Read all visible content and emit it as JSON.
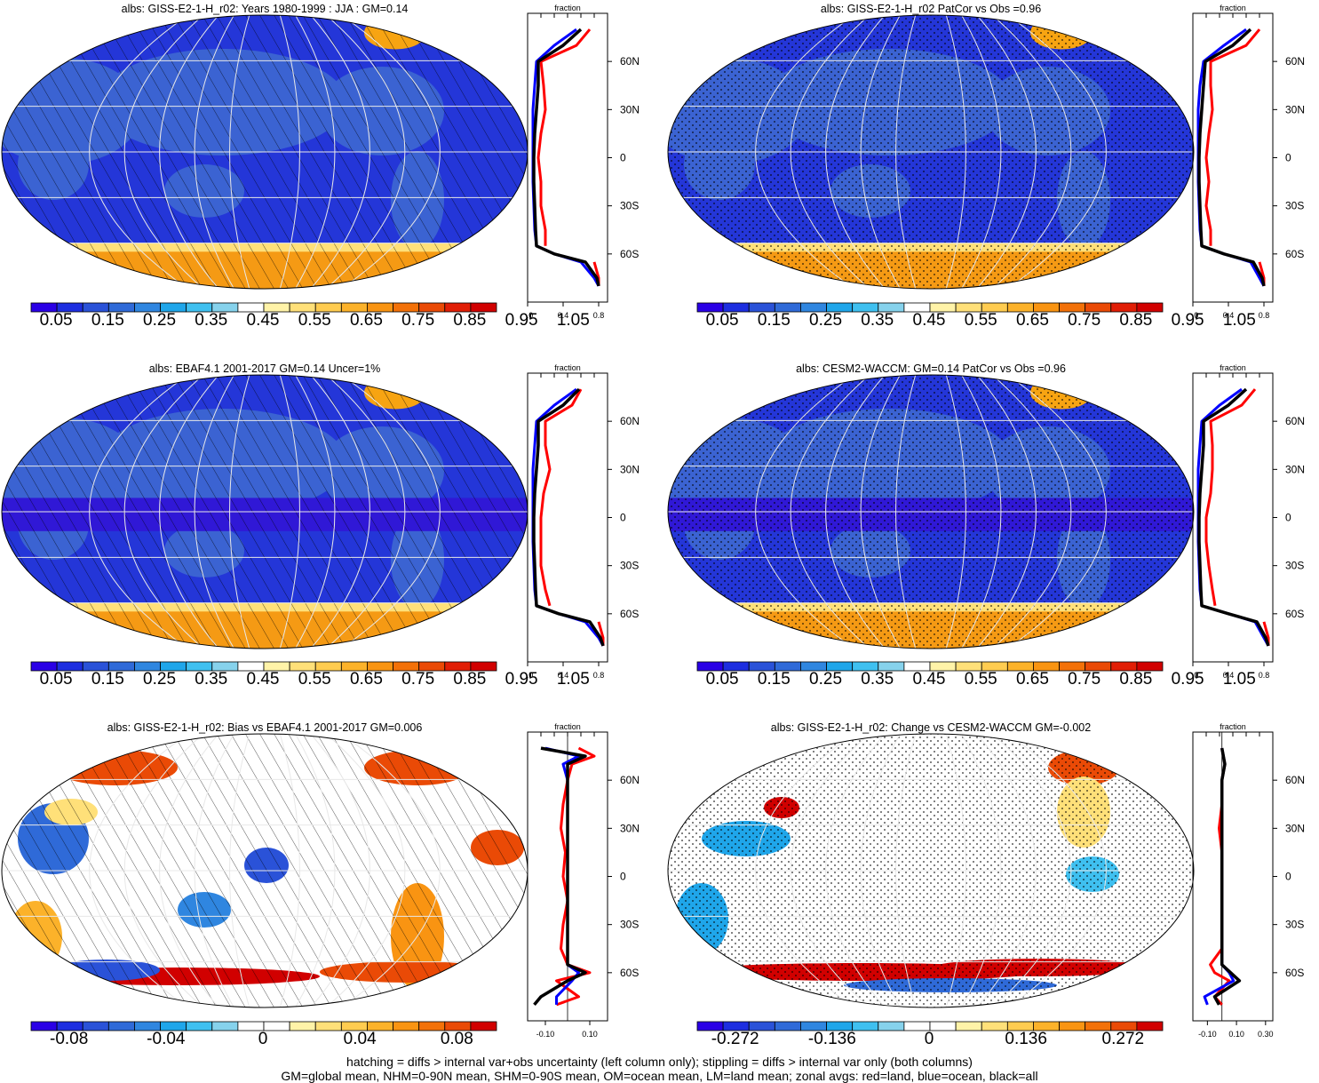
{
  "colors": {
    "scale_abs": [
      "#2a00e6",
      "#1d2ee0",
      "#2a52d8",
      "#2f6ad8",
      "#2f86e0",
      "#1fa6ea",
      "#3fc0f0",
      "#86d2ec",
      "#ffffff",
      "#fff3a8",
      "#ffe079",
      "#ffcc50",
      "#fcb22a",
      "#f99412",
      "#f37108",
      "#ea4a06",
      "#e11e06",
      "#d10000"
    ],
    "scale_div": [
      "#2a00e6",
      "#1d2ee0",
      "#2a52d8",
      "#2f6ad8",
      "#2f86e0",
      "#1fa6ea",
      "#3fc0f0",
      "#86d2ec",
      "#ffffff",
      "#ffffff",
      "#fff3a8",
      "#ffe079",
      "#ffcc50",
      "#fcb22a",
      "#f99412",
      "#f37108",
      "#ea4a06",
      "#d10000"
    ],
    "land": "#ff0000",
    "ocean": "#0000ff",
    "all": "#000000"
  },
  "panels": [
    {
      "id": "p1",
      "title": "albs: GISS-E2-1-H_r02: Years 1980-1999 : JJA : GM=0.14",
      "kind": "abs",
      "overlay": "hatch",
      "cb_labels": [
        "0.05",
        "0.15",
        "0.25",
        "0.35",
        "0.45",
        "0.55",
        "0.65",
        "0.75",
        "0.85",
        "0.95",
        "1.05"
      ],
      "prof_ticks": [
        "0.0",
        "0.4",
        "0.8"
      ]
    },
    {
      "id": "p2",
      "title": "albs: GISS-E2-1-H_r02 PatCor vs Obs =0.96",
      "kind": "abs",
      "overlay": "stipple",
      "cb_labels": [
        "0.05",
        "0.15",
        "0.25",
        "0.35",
        "0.45",
        "0.55",
        "0.65",
        "0.75",
        "0.85",
        "0.95",
        "1.05"
      ],
      "prof_ticks": [
        "0.0",
        "0.4",
        "0.8"
      ]
    },
    {
      "id": "p3",
      "title": "albs: EBAF4.1 2001-2017 GM=0.14 Uncer=1%",
      "kind": "abs",
      "overlay": "hatch",
      "cb_labels": [
        "0.05",
        "0.15",
        "0.25",
        "0.35",
        "0.45",
        "0.55",
        "0.65",
        "0.75",
        "0.85",
        "0.95",
        "1.05"
      ],
      "prof_ticks": [
        "0.0",
        "0.4",
        "0.8"
      ]
    },
    {
      "id": "p4",
      "title": "albs: CESM2-WACCM: GM=0.14 PatCor vs Obs =0.96",
      "kind": "abs",
      "overlay": "stipple",
      "cb_labels": [
        "0.05",
        "0.15",
        "0.25",
        "0.35",
        "0.45",
        "0.55",
        "0.65",
        "0.75",
        "0.85",
        "0.95",
        "1.05"
      ],
      "prof_ticks": [
        "0.0",
        "0.4",
        "0.8"
      ]
    },
    {
      "id": "p5",
      "title": "albs: GISS-E2-1-H_r02: Bias vs EBAF4.1 2001-2017 GM=0.006",
      "kind": "diff",
      "overlay": "hatch",
      "cb_labels": [
        "-0.08",
        "-0.04",
        "0",
        "0.04",
        "0.08"
      ],
      "prof_ticks": [
        "-0.10",
        "0.10"
      ]
    },
    {
      "id": "p6",
      "title": "albs: GISS-E2-1-H_r02: Change vs CESM2-WACCM GM=-0.002",
      "kind": "diff",
      "overlay": "stipple",
      "cb_labels": [
        "-0.272",
        "-0.136",
        "0",
        "0.136",
        "0.272"
      ],
      "prof_ticks": [
        "-0.10",
        "0.10",
        "0.30"
      ]
    }
  ],
  "profile": {
    "top_label": "fraction",
    "lat_labels": [
      "60N",
      "30N",
      "0",
      "30S",
      "60S"
    ]
  },
  "footer": {
    "line1": "hatching = diffs > internal var+obs uncertainty (left column only); stippling = diffs > internal var only (both columns)",
    "line2": "GM=global mean, NHM=0-90N mean, SHM=0-90S mean, OM=ocean mean, LM=land mean; zonal avgs: red=land, blue=ocean, black=all"
  },
  "chart_data": [
    {
      "type": "heatmap",
      "title": "albs: GISS-E2-1-H_r02: Years 1980-1999 : JJA : GM=0.14",
      "colorbar_ticks": [
        0.05,
        0.15,
        0.25,
        0.35,
        0.45,
        0.55,
        0.65,
        0.75,
        0.85,
        0.95,
        1.05
      ],
      "zonal_profile": {
        "xlabel": "fraction",
        "xlim": [
          0,
          0.9
        ],
        "lat": [
          80,
          70,
          60,
          45,
          30,
          15,
          0,
          -15,
          -30,
          -45,
          -55,
          -60,
          -65,
          -75,
          -80
        ],
        "series": [
          {
            "name": "red=land",
            "values": [
              0.7,
              0.55,
              0.15,
              0.18,
              0.2,
              0.15,
              0.12,
              0.15,
              0.15,
              0.2,
              0.2,
              null,
              0.75,
              0.8,
              0.8
            ]
          },
          {
            "name": "blue=ocean",
            "values": [
              0.55,
              0.3,
              0.1,
              0.08,
              0.06,
              0.06,
              0.06,
              0.06,
              0.07,
              0.08,
              0.1,
              0.3,
              0.6,
              0.75,
              0.8
            ]
          },
          {
            "name": "black=all",
            "values": [
              0.6,
              0.4,
              0.12,
              0.12,
              0.1,
              0.08,
              0.07,
              0.07,
              0.08,
              0.09,
              0.1,
              0.3,
              0.65,
              0.78,
              0.8
            ]
          }
        ]
      }
    },
    {
      "type": "heatmap",
      "title": "albs: GISS-E2-1-H_r02 PatCor vs Obs =0.96",
      "colorbar_ticks": [
        0.05,
        0.15,
        0.25,
        0.35,
        0.45,
        0.55,
        0.65,
        0.75,
        0.85,
        0.95,
        1.05
      ],
      "zonal_profile": {
        "xlabel": "fraction",
        "xlim": [
          0,
          0.9
        ],
        "lat": [
          80,
          70,
          60,
          45,
          30,
          15,
          0,
          -15,
          -30,
          -45,
          -55,
          -60,
          -65,
          -75,
          -80
        ],
        "series": [
          {
            "name": "red=land",
            "values": [
              0.75,
              0.6,
              0.2,
              0.2,
              0.22,
              0.18,
              0.15,
              0.18,
              0.15,
              0.2,
              0.2,
              null,
              0.75,
              0.8,
              0.8
            ]
          },
          {
            "name": "blue=ocean",
            "values": [
              0.6,
              0.35,
              0.12,
              0.08,
              0.06,
              0.06,
              0.06,
              0.06,
              0.07,
              0.08,
              0.1,
              0.35,
              0.65,
              0.75,
              0.8
            ]
          },
          {
            "name": "black=all",
            "values": [
              0.65,
              0.45,
              0.14,
              0.12,
              0.1,
              0.08,
              0.07,
              0.07,
              0.08,
              0.09,
              0.1,
              0.35,
              0.68,
              0.78,
              0.8
            ]
          }
        ]
      }
    },
    {
      "type": "heatmap",
      "title": "albs: EBAF4.1 2001-2017 GM=0.14 Uncer=1%",
      "colorbar_ticks": [
        0.05,
        0.15,
        0.25,
        0.35,
        0.45,
        0.55,
        0.65,
        0.75,
        0.85,
        0.95,
        1.05
      ],
      "zonal_profile": {
        "xlabel": "fraction",
        "xlim": [
          0,
          0.9
        ],
        "lat": [
          80,
          70,
          60,
          45,
          30,
          15,
          0,
          -15,
          -30,
          -45,
          -55,
          -60,
          -65,
          -75,
          -80
        ],
        "series": [
          {
            "name": "red=land",
            "values": [
              0.6,
              0.5,
              0.2,
              0.2,
              0.25,
              0.18,
              0.15,
              0.15,
              0.15,
              0.2,
              0.25,
              null,
              0.8,
              0.85,
              0.85
            ]
          },
          {
            "name": "blue=ocean",
            "values": [
              0.55,
              0.3,
              0.1,
              0.08,
              0.06,
              0.06,
              0.06,
              0.06,
              0.07,
              0.08,
              0.1,
              0.35,
              0.65,
              0.8,
              0.85
            ]
          },
          {
            "name": "black=all",
            "values": [
              0.58,
              0.4,
              0.12,
              0.12,
              0.1,
              0.08,
              0.07,
              0.07,
              0.08,
              0.09,
              0.1,
              0.35,
              0.7,
              0.82,
              0.85
            ]
          }
        ]
      }
    },
    {
      "type": "heatmap",
      "title": "albs: CESM2-WACCM: GM=0.14 PatCor vs Obs =0.96",
      "colorbar_ticks": [
        0.05,
        0.15,
        0.25,
        0.35,
        0.45,
        0.55,
        0.65,
        0.75,
        0.85,
        0.95,
        1.05
      ],
      "zonal_profile": {
        "xlabel": "fraction",
        "xlim": [
          0,
          0.9
        ],
        "lat": [
          80,
          70,
          60,
          45,
          30,
          15,
          0,
          -15,
          -30,
          -45,
          -55,
          -60,
          -65,
          -75,
          -80
        ],
        "series": [
          {
            "name": "red=land",
            "values": [
              0.7,
              0.55,
              0.2,
              0.22,
              0.22,
              0.2,
              0.15,
              0.15,
              0.18,
              0.22,
              0.25,
              null,
              0.8,
              0.85,
              0.85
            ]
          },
          {
            "name": "blue=ocean",
            "values": [
              0.55,
              0.3,
              0.1,
              0.08,
              0.06,
              0.06,
              0.06,
              0.06,
              0.07,
              0.08,
              0.1,
              0.4,
              0.7,
              0.8,
              0.85
            ]
          },
          {
            "name": "black=all",
            "values": [
              0.6,
              0.4,
              0.12,
              0.12,
              0.1,
              0.08,
              0.07,
              0.07,
              0.08,
              0.09,
              0.1,
              0.4,
              0.72,
              0.82,
              0.85
            ]
          }
        ]
      }
    },
    {
      "type": "heatmap",
      "title": "albs: GISS-E2-1-H_r02: Bias vs EBAF4.1 2001-2017 GM=0.006",
      "colorbar_ticks": [
        -0.08,
        -0.04,
        0,
        0.04,
        0.08
      ],
      "zonal_profile": {
        "xlabel": "fraction",
        "xlim": [
          -0.18,
          0.18
        ],
        "lat": [
          80,
          75,
          70,
          60,
          45,
          30,
          15,
          0,
          -15,
          -30,
          -45,
          -55,
          -60,
          -65,
          -75,
          -80
        ],
        "series": [
          {
            "name": "red=land",
            "values": [
              0.05,
              0.12,
              0.02,
              0.0,
              -0.02,
              -0.03,
              -0.01,
              -0.02,
              0.0,
              -0.02,
              -0.03,
              0.0,
              0.1,
              -0.05,
              0.05,
              -0.05
            ]
          },
          {
            "name": "blue=ocean",
            "values": [
              -0.1,
              0.05,
              -0.02,
              0.0,
              0.0,
              0.0,
              0.0,
              0.0,
              0.0,
              0.0,
              0.0,
              0.0,
              0.05,
              0.02,
              -0.05,
              -0.05
            ]
          },
          {
            "name": "black=all",
            "values": [
              -0.12,
              0.08,
              0.0,
              0.0,
              0.0,
              0.0,
              0.0,
              0.0,
              0.0,
              0.0,
              0.0,
              0.0,
              0.08,
              0.0,
              -0.12,
              -0.15
            ]
          }
        ]
      }
    },
    {
      "type": "heatmap",
      "title": "albs: GISS-E2-1-H_r02: Change vs CESM2-WACCM GM=-0.002",
      "colorbar_ticks": [
        -0.272,
        -0.136,
        0,
        0.136,
        0.272
      ],
      "zonal_profile": {
        "xlabel": "fraction",
        "xlim": [
          -0.2,
          0.35
        ],
        "lat": [
          80,
          70,
          60,
          45,
          30,
          15,
          0,
          -15,
          -30,
          -45,
          -55,
          -60,
          -65,
          -75,
          -80
        ],
        "series": [
          {
            "name": "red=land",
            "values": [
              0.0,
              0.02,
              0.0,
              0.0,
              -0.02,
              0.0,
              0.0,
              0.0,
              0.0,
              0.0,
              -0.08,
              -0.05,
              0.05,
              -0.05,
              0.0
            ]
          },
          {
            "name": "blue=ocean",
            "values": [
              0.0,
              0.02,
              0.0,
              0.0,
              0.0,
              0.0,
              0.0,
              0.0,
              0.0,
              0.0,
              0.0,
              0.05,
              0.08,
              -0.12,
              -0.1
            ]
          },
          {
            "name": "black=all",
            "values": [
              0.0,
              0.02,
              0.0,
              0.0,
              0.0,
              0.0,
              0.0,
              0.0,
              0.0,
              0.0,
              0.0,
              0.06,
              0.12,
              -0.05,
              -0.02
            ]
          }
        ]
      }
    }
  ]
}
